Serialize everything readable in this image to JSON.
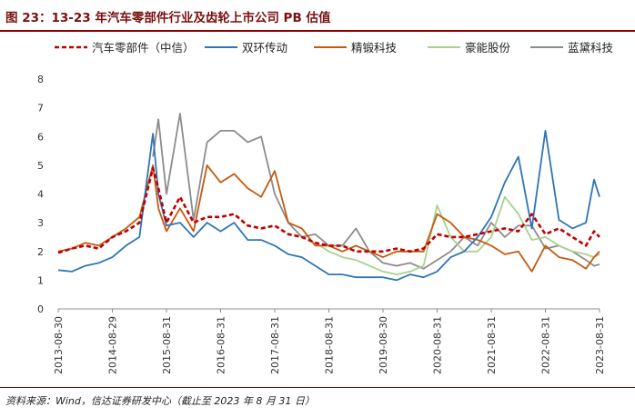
{
  "title": "图 23：13-23 年汽车零部件行业及齿轮上市公司 PB 估值",
  "source": "资料来源：Wind，信达证券研发中心（截止至 2023 年 8 月 31 日）",
  "chart_data": {
    "type": "line",
    "title": "图 23：13-23 年汽车零部件行业及齿轮上市公司 PB 估值",
    "ylim": [
      0,
      8
    ],
    "yticks": [
      0,
      1,
      2,
      3,
      4,
      5,
      6,
      7,
      8
    ],
    "xlim": [
      0,
      10
    ],
    "x_tick_labels": [
      "2013-08-30",
      "2014-08-29",
      "2015-08-31",
      "2016-08-31",
      "2017-08-31",
      "2018-08-31",
      "2019-08-30",
      "2020-08-31",
      "2021-08-31",
      "2022-08-31",
      "2023-08-31"
    ],
    "grid": false,
    "legend_position": "top",
    "x": [
      0,
      0.25,
      0.5,
      0.75,
      1,
      1.25,
      1.5,
      1.75,
      1.85,
      2,
      2.25,
      2.5,
      2.75,
      3,
      3.25,
      3.5,
      3.75,
      4,
      4.25,
      4.5,
      4.75,
      5,
      5.25,
      5.5,
      5.75,
      6,
      6.25,
      6.5,
      6.75,
      7,
      7.25,
      7.5,
      7.75,
      8,
      8.25,
      8.5,
      8.75,
      9,
      9.25,
      9.5,
      9.75,
      9.9,
      10
    ],
    "series": [
      {
        "name": "汽车零部件（中信）",
        "color": "#c00000",
        "dash": true,
        "values": [
          1.95,
          2.1,
          2.2,
          2.1,
          2.5,
          2.7,
          3.0,
          4.9,
          4.2,
          3.0,
          3.9,
          3.0,
          3.2,
          3.2,
          3.3,
          2.9,
          2.8,
          2.9,
          2.6,
          2.5,
          2.3,
          2.2,
          2.2,
          2.0,
          2.0,
          2.0,
          2.1,
          2.0,
          2.1,
          2.6,
          2.5,
          2.5,
          2.6,
          2.7,
          2.8,
          2.7,
          3.3,
          2.6,
          2.8,
          2.5,
          2.2,
          2.7,
          2.5
        ]
      },
      {
        "name": "双环传动",
        "color": "#2e75b6",
        "values": [
          1.35,
          1.3,
          1.5,
          1.6,
          1.8,
          2.2,
          2.5,
          6.1,
          4.0,
          2.9,
          3.0,
          2.5,
          3.0,
          2.7,
          3.0,
          2.4,
          2.4,
          2.2,
          1.9,
          1.8,
          1.5,
          1.2,
          1.2,
          1.1,
          1.1,
          1.1,
          1.0,
          1.2,
          1.1,
          1.3,
          1.8,
          2.0,
          2.5,
          3.2,
          4.4,
          5.3,
          2.8,
          6.2,
          3.1,
          2.8,
          3.0,
          4.5,
          3.9
        ]
      },
      {
        "name": "精锻科技",
        "color": "#c55a11",
        "values": [
          2.0,
          2.1,
          2.3,
          2.2,
          2.5,
          2.8,
          3.2,
          5.0,
          3.5,
          2.7,
          3.5,
          2.7,
          5.0,
          4.4,
          4.7,
          4.2,
          3.9,
          4.8,
          3.0,
          2.8,
          2.2,
          2.2,
          2.0,
          2.2,
          2.0,
          1.8,
          2.0,
          2.0,
          2.0,
          3.3,
          3.0,
          2.5,
          2.4,
          2.2,
          1.9,
          2.0,
          1.3,
          2.2,
          1.8,
          1.7,
          1.4,
          1.8,
          2.0
        ]
      },
      {
        "name": "豪能股份",
        "color": "#a9d18e",
        "values": [
          null,
          null,
          null,
          null,
          null,
          null,
          null,
          null,
          null,
          null,
          null,
          null,
          null,
          null,
          null,
          null,
          null,
          null,
          null,
          null,
          2.3,
          2.0,
          1.8,
          1.7,
          1.5,
          1.3,
          1.2,
          1.3,
          1.5,
          3.6,
          2.5,
          2.0,
          2.0,
          2.5,
          3.9,
          3.3,
          2.4,
          2.5,
          2.2,
          2.0,
          1.9,
          1.8,
          1.9
        ]
      },
      {
        "name": "蓝黛科技",
        "color": "#8c8c8c",
        "values": [
          null,
          null,
          null,
          null,
          null,
          null,
          null,
          5.3,
          6.6,
          4.0,
          6.8,
          3.1,
          5.8,
          6.2,
          6.2,
          5.8,
          6.0,
          4.0,
          3.0,
          2.5,
          2.6,
          2.2,
          2.2,
          2.8,
          2.0,
          1.6,
          1.5,
          1.6,
          1.4,
          1.7,
          2.0,
          2.5,
          2.2,
          3.0,
          2.5,
          2.9,
          2.9,
          2.1,
          2.2,
          2.0,
          1.7,
          1.5,
          1.55
        ]
      }
    ]
  }
}
